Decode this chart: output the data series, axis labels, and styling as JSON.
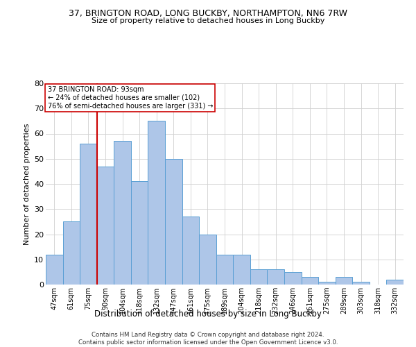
{
  "title_line1": "37, BRINGTON ROAD, LONG BUCKBY, NORTHAMPTON, NN6 7RW",
  "title_line2": "Size of property relative to detached houses in Long Buckby",
  "xlabel": "Distribution of detached houses by size in Long Buckby",
  "ylabel": "Number of detached properties",
  "categories": [
    "47sqm",
    "61sqm",
    "75sqm",
    "90sqm",
    "104sqm",
    "118sqm",
    "132sqm",
    "147sqm",
    "161sqm",
    "175sqm",
    "189sqm",
    "204sqm",
    "218sqm",
    "232sqm",
    "246sqm",
    "261sqm",
    "275sqm",
    "289sqm",
    "303sqm",
    "318sqm",
    "332sqm"
  ],
  "values": [
    12,
    25,
    56,
    47,
    57,
    41,
    65,
    50,
    27,
    20,
    12,
    12,
    6,
    6,
    5,
    3,
    1,
    3,
    1,
    0,
    2
  ],
  "bar_color": "#aec6e8",
  "bar_edge_color": "#5a9fd4",
  "vline_x_index": 3,
  "vline_color": "#cc0000",
  "annotation_text": "37 BRINGTON ROAD: 93sqm\n← 24% of detached houses are smaller (102)\n76% of semi-detached houses are larger (331) →",
  "annotation_box_color": "#ffffff",
  "annotation_box_edge_color": "#cc0000",
  "ylim": [
    0,
    80
  ],
  "yticks": [
    0,
    10,
    20,
    30,
    40,
    50,
    60,
    70,
    80
  ],
  "footer": "Contains HM Land Registry data © Crown copyright and database right 2024.\nContains public sector information licensed under the Open Government Licence v3.0.",
  "bg_color": "#ffffff",
  "grid_color": "#d0d0d0"
}
